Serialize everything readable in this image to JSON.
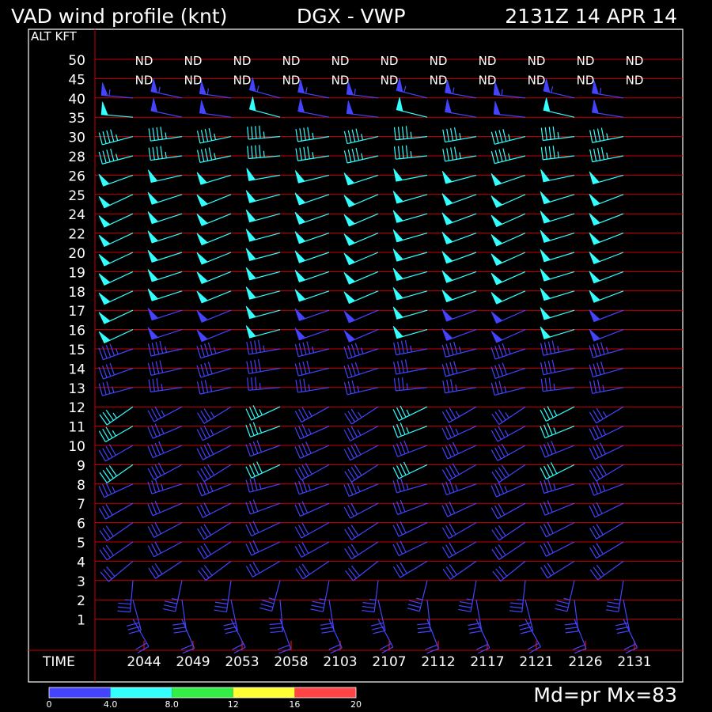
{
  "header": {
    "title": "VAD wind profile (knt)",
    "station": "DGX - VWP",
    "timestamp": "2131Z 14 APR 14"
  },
  "footer": {
    "info": "Md=pr Mx=83"
  },
  "chart_data": {
    "type": "wind-profile",
    "ylabel": "ALT KFT",
    "xlabel": "TIME",
    "altitudes": [
      "50",
      "45",
      "40",
      "35",
      "30",
      "28",
      "26",
      "25",
      "24",
      "22",
      "20",
      "19",
      "18",
      "17",
      "16",
      "15",
      "14",
      "13",
      "12",
      "11",
      "10",
      "9",
      "8",
      "7",
      "6",
      "5",
      "4",
      "3",
      "2",
      "1"
    ],
    "times": [
      "2044",
      "2049",
      "2053",
      "2058",
      "2103",
      "2107",
      "2112",
      "2117",
      "2121",
      "2126",
      "2131"
    ],
    "no_data_label": "ND",
    "no_data_altitudes": [
      "50",
      "45"
    ],
    "legend": {
      "colors": [
        "#4444ff",
        "#33ffff",
        "#33ee44",
        "#ffff33",
        "#ff4444"
      ],
      "ticks": [
        "0",
        "4.0",
        "8.0",
        "12",
        "16",
        "20"
      ]
    },
    "grid_color": "#cc0000",
    "profile": [
      {
        "alt": "40",
        "dir": 280,
        "spd": 55,
        "rms": 2
      },
      {
        "alt": "35",
        "dir": 280,
        "spd": 50,
        "rms": 3
      },
      {
        "alt": "30",
        "dir": 260,
        "spd": 45,
        "rms": 4
      },
      {
        "alt": "28",
        "dir": 260,
        "spd": 45,
        "rms": 4
      },
      {
        "alt": "26",
        "dir": 255,
        "spd": 50,
        "rms": 4
      },
      {
        "alt": "25",
        "dir": 250,
        "spd": 50,
        "rms": 4
      },
      {
        "alt": "24",
        "dir": 250,
        "spd": 50,
        "rms": 4
      },
      {
        "alt": "22",
        "dir": 250,
        "spd": 50,
        "rms": 4
      },
      {
        "alt": "20",
        "dir": 250,
        "spd": 50,
        "rms": 4
      },
      {
        "alt": "19",
        "dir": 250,
        "spd": 50,
        "rms": 4
      },
      {
        "alt": "18",
        "dir": 250,
        "spd": 50,
        "rms": 4
      },
      {
        "alt": "17",
        "dir": 250,
        "spd": 50,
        "rms": 3
      },
      {
        "alt": "16",
        "dir": 250,
        "spd": 50,
        "rms": 3
      },
      {
        "alt": "15",
        "dir": 255,
        "spd": 45,
        "rms": 2
      },
      {
        "alt": "14",
        "dir": 255,
        "spd": 40,
        "rms": 2
      },
      {
        "alt": "13",
        "dir": 260,
        "spd": 35,
        "rms": 2
      },
      {
        "alt": "12",
        "dir": 240,
        "spd": 35,
        "rms": 3
      },
      {
        "alt": "11",
        "dir": 245,
        "spd": 35,
        "rms": 3
      },
      {
        "alt": "10",
        "dir": 245,
        "spd": 40,
        "rms": 2
      },
      {
        "alt": "9",
        "dir": 240,
        "spd": 40,
        "rms": 3
      },
      {
        "alt": "8",
        "dir": 250,
        "spd": 35,
        "rms": 2
      },
      {
        "alt": "7",
        "dir": 245,
        "spd": 30,
        "rms": 2
      },
      {
        "alt": "6",
        "dir": 240,
        "spd": 30,
        "rms": 2
      },
      {
        "alt": "5",
        "dir": 240,
        "spd": 30,
        "rms": 2
      },
      {
        "alt": "4",
        "dir": 235,
        "spd": 30,
        "rms": 2
      },
      {
        "alt": "3",
        "dir": 190,
        "spd": 35,
        "rms": 2
      },
      {
        "alt": "2",
        "dir": 170,
        "spd": 30,
        "rms": 2
      },
      {
        "alt": "1",
        "dir": 155,
        "spd": 20,
        "rms": 2
      }
    ]
  }
}
